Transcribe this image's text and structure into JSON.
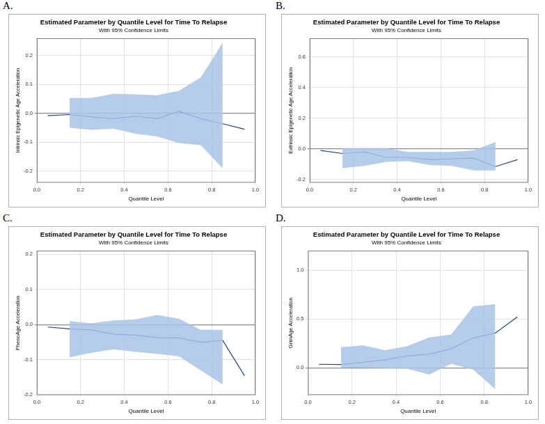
{
  "chart_data": [
    {
      "type": "line",
      "panel_label": "A.",
      "title": "Estimated Parameter by Quantile Level for Time To Relapse",
      "subtitle": "With 95% Confidence Limits",
      "x_label": "Quantile Level",
      "y_label": "Intrinsic Epigenetic Age Acceleration",
      "x": [
        0.05,
        0.15,
        0.25,
        0.35,
        0.45,
        0.55,
        0.65,
        0.75,
        0.85,
        0.95
      ],
      "values": [
        -0.008,
        -0.004,
        -0.012,
        -0.018,
        -0.01,
        -0.018,
        0.007,
        -0.018,
        -0.036,
        -0.055
      ],
      "lower": [
        null,
        -0.05,
        -0.057,
        -0.053,
        -0.07,
        -0.08,
        -0.103,
        -0.11,
        -0.19,
        null
      ],
      "upper": [
        null,
        0.053,
        0.053,
        0.068,
        0.066,
        0.063,
        0.078,
        0.125,
        0.245,
        null
      ],
      "color": "#213f94",
      "xlim": [
        0,
        1
      ],
      "xticks": [
        {
          "value": 0,
          "label": "0.0"
        },
        0.2,
        0.4,
        0.6,
        0.8,
        {
          "value": 1,
          "label": "1.0"
        }
      ],
      "ylim": [
        -0.24,
        0.26
      ],
      "yticks": [
        -0.2,
        -0.1,
        {
          "value": 0,
          "label": "0.0"
        },
        0.1,
        0.2
      ],
      "grid": true
    },
    {
      "type": "line",
      "panel_label": "B.",
      "title": "Estimated Parameter by Quantile Level for Time To Relapse",
      "subtitle": "With 95% Confidence Limits",
      "x_label": "Quantile Level",
      "y_label": "Extrinsic Epigenetic Age Acceleration",
      "x": [
        0.05,
        0.15,
        0.25,
        0.35,
        0.45,
        0.55,
        0.65,
        0.75,
        0.85,
        0.95
      ],
      "values": [
        -0.01,
        -0.03,
        -0.02,
        -0.055,
        -0.055,
        -0.07,
        -0.065,
        -0.06,
        -0.115,
        -0.07
      ],
      "lower": [
        null,
        -0.125,
        -0.11,
        -0.085,
        -0.08,
        -0.105,
        -0.11,
        -0.14,
        -0.14,
        null
      ],
      "upper": [
        null,
        0.005,
        0.005,
        0.005,
        -0.02,
        -0.02,
        -0.02,
        -0.01,
        0.045,
        null
      ],
      "color": "#213f94",
      "xlim": [
        0,
        1
      ],
      "xticks": [
        {
          "value": 0,
          "label": "0.0"
        },
        0.2,
        0.4,
        0.6,
        0.8,
        {
          "value": 1,
          "label": "1.0"
        }
      ],
      "ylim": [
        -0.22,
        0.72
      ],
      "yticks": [
        -0.2,
        {
          "value": 0,
          "label": "0.0"
        },
        0.2,
        0.4,
        0.6
      ],
      "grid": true
    },
    {
      "type": "line",
      "panel_label": "C.",
      "title": "Estimated Parameter by Quantile Level for Time To Relapse",
      "subtitle": "With 95% Confidence Limits",
      "x_label": "Quantile Level",
      "y_label": "PhenoAge Acceleration",
      "x": [
        0.05,
        0.15,
        0.25,
        0.35,
        0.45,
        0.55,
        0.65,
        0.75,
        0.85,
        0.95
      ],
      "values": [
        -0.007,
        -0.012,
        -0.015,
        -0.027,
        -0.03,
        -0.037,
        -0.038,
        -0.05,
        -0.045,
        -0.145
      ],
      "lower": [
        null,
        -0.093,
        -0.08,
        -0.07,
        -0.077,
        -0.083,
        -0.09,
        -0.13,
        -0.17,
        null
      ],
      "upper": [
        null,
        0.01,
        0.004,
        0.012,
        0.015,
        0.027,
        0.017,
        -0.015,
        -0.015,
        null
      ],
      "color": "#213f94",
      "xlim": [
        0,
        1
      ],
      "xticks": [
        {
          "value": 0,
          "label": "0.0"
        },
        0.2,
        0.4,
        0.6,
        0.8,
        {
          "value": 1,
          "label": "1.0"
        }
      ],
      "ylim": [
        -0.2,
        0.21
      ],
      "yticks": [
        -0.2,
        -0.1,
        {
          "value": 0,
          "label": "0.0"
        },
        0.1,
        0.2
      ],
      "grid": true
    },
    {
      "type": "line",
      "panel_label": "D.",
      "title": "Estimated Parameter by Quantile Level for Time To Relapse",
      "subtitle": "With 95% Confidence Limits",
      "x_label": "Quantile Level",
      "y_label": "GrimAge Acceleration",
      "x": [
        0.05,
        0.15,
        0.25,
        0.35,
        0.45,
        0.55,
        0.65,
        0.75,
        0.85,
        0.95
      ],
      "values": [
        0.035,
        0.033,
        0.055,
        0.08,
        0.12,
        0.14,
        0.195,
        0.305,
        0.355,
        0.52
      ],
      "lower": [
        null,
        0.0,
        0.0,
        -0.005,
        -0.01,
        -0.07,
        0.04,
        -0.02,
        -0.22,
        null
      ],
      "upper": [
        null,
        0.21,
        0.23,
        0.18,
        0.22,
        0.31,
        0.34,
        0.63,
        0.65,
        null
      ],
      "color": "#213f94",
      "xlim": [
        0,
        1
      ],
      "xticks": [
        {
          "value": 0,
          "label": "0.0"
        },
        0.2,
        0.4,
        0.6,
        0.8,
        {
          "value": 1,
          "label": "1.0"
        }
      ],
      "ylim": [
        -0.28,
        1.2
      ],
      "yticks": [
        {
          "value": 0,
          "label": "0.0"
        },
        0.5,
        {
          "value": 1,
          "label": "1.0"
        }
      ],
      "grid": true
    }
  ]
}
